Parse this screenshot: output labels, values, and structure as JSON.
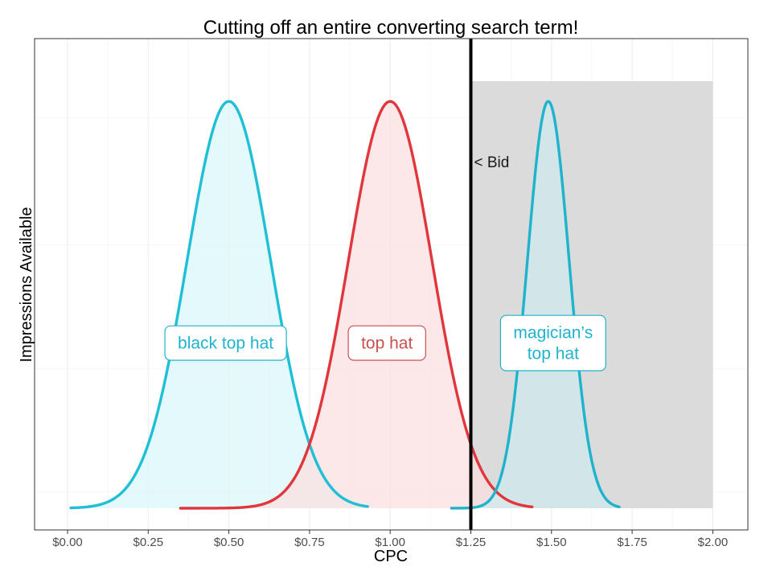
{
  "chart_data": {
    "type": "area",
    "title": "Cutting off an entire converting search term!",
    "xlabel": "CPC",
    "ylabel": "Impressions Available",
    "xlim": [
      0,
      2.1
    ],
    "x_ticks": [
      0,
      0.25,
      0.5,
      0.75,
      1.0,
      1.25,
      1.5,
      1.75,
      2.0
    ],
    "x_tick_labels": [
      "$0.00",
      "$0.25",
      "$0.50",
      "$0.75",
      "$1.00",
      "$1.25",
      "$1.50",
      "$1.75",
      "$2.00"
    ],
    "grid": true,
    "series": [
      {
        "name": "black top hat",
        "mean": 0.5,
        "sd": 0.13,
        "peak": 1.0,
        "x_range": [
          0.01,
          0.93
        ],
        "line_color": "#1fbfd6",
        "fill_color": "#d9f6f9"
      },
      {
        "name": "top hat",
        "mean": 1.0,
        "sd": 0.13,
        "peak": 1.0,
        "x_range": [
          0.35,
          1.44
        ],
        "line_color": "#e0363c",
        "fill_color": "#fbdfe0"
      },
      {
        "name": "magician’s top hat",
        "mean": 1.49,
        "sd": 0.065,
        "peak": 1.0,
        "x_range": [
          1.19,
          1.71
        ],
        "line_color": "#1fb3cc",
        "fill_color": "#cfe9ee"
      }
    ],
    "bid": {
      "x": 1.25,
      "label": "< Bid"
    },
    "excluded_region": {
      "x_start": 1.25,
      "x_end": 2.0,
      "color": "#d9d9d9"
    },
    "annotations": [
      {
        "text": [
          "black top hat"
        ],
        "x": 0.49,
        "y": 0.4,
        "color": "#1fb3cc"
      },
      {
        "text": [
          "top hat"
        ],
        "x": 0.99,
        "y": 0.4,
        "color": "#c9504f"
      },
      {
        "text": [
          "magician’s",
          "top hat"
        ],
        "x": 1.505,
        "y": 0.4,
        "color": "#1fb3cc"
      }
    ]
  }
}
